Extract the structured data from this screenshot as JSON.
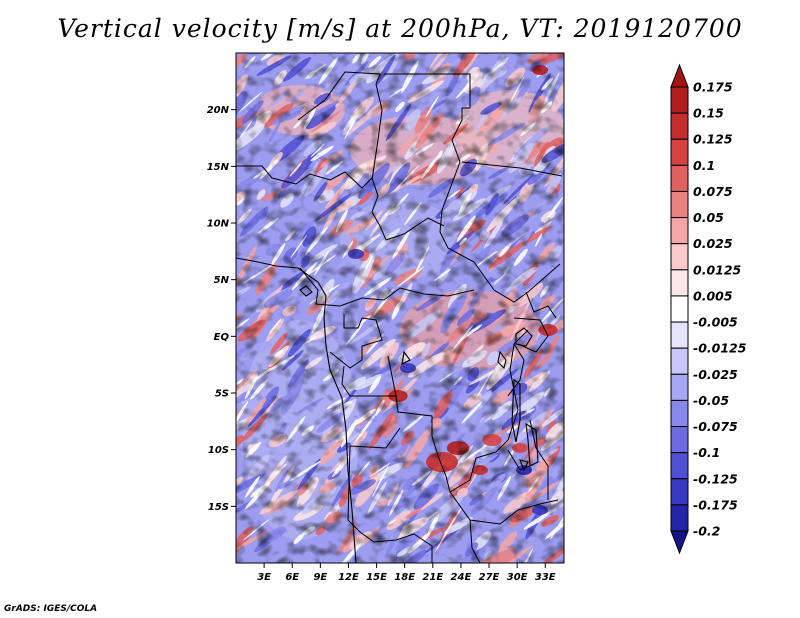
{
  "title": "Vertical velocity [m/s] at 200hPa, VT: 2019120700",
  "credit": "GrADS: IGES/COLA",
  "map": {
    "lon_range": [
      0,
      35
    ],
    "lat_range": [
      -20,
      25
    ],
    "lat_ticks": [
      {
        "lat": 20,
        "label": "20N"
      },
      {
        "lat": 15,
        "label": "15N"
      },
      {
        "lat": 10,
        "label": "10N"
      },
      {
        "lat": 5,
        "label": "5N"
      },
      {
        "lat": 0,
        "label": "EQ"
      },
      {
        "lat": -5,
        "label": "5S"
      },
      {
        "lat": -10,
        "label": "10S"
      },
      {
        "lat": -15,
        "label": "15S"
      }
    ],
    "lon_ticks": [
      {
        "lon": 3,
        "label": "3E"
      },
      {
        "lon": 6,
        "label": "6E"
      },
      {
        "lon": 9,
        "label": "9E"
      },
      {
        "lon": 12,
        "label": "12E"
      },
      {
        "lon": 15,
        "label": "15E"
      },
      {
        "lon": 18,
        "label": "18E"
      },
      {
        "lon": 21,
        "label": "21E"
      },
      {
        "lon": 24,
        "label": "24E"
      },
      {
        "lon": 27,
        "label": "27E"
      },
      {
        "lon": 30,
        "label": "30E"
      },
      {
        "lon": 33,
        "label": "33E"
      }
    ]
  },
  "colorbar": {
    "labels": [
      "0.175",
      "0.15",
      "0.125",
      "0.1",
      "0.075",
      "0.05",
      "0.025",
      "0.0125",
      "0.005",
      "-0.005",
      "-0.0125",
      "-0.025",
      "-0.05",
      "-0.075",
      "-0.1",
      "-0.125",
      "-0.175",
      "-0.2"
    ],
    "colors": [
      "#a01414",
      "#b21e1e",
      "#c52e2e",
      "#d44242",
      "#e06060",
      "#eb8282",
      "#f4a6a6",
      "#fbcaca",
      "#fde6e6",
      "#ffffff",
      "#e4e4fc",
      "#c6c6f8",
      "#a6a6f2",
      "#8888ea",
      "#6c6ce0",
      "#5050d2",
      "#3838c0",
      "#2424a8",
      "#141488"
    ]
  }
}
